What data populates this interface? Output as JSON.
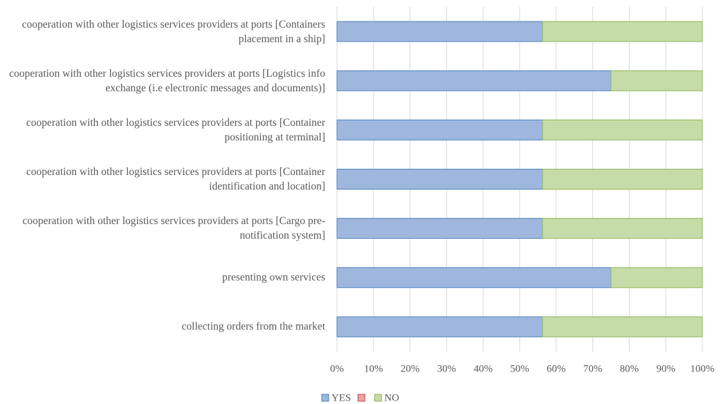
{
  "chart_data": {
    "type": "stacked_bar_horizontal",
    "categories": [
      "cooperation with other logistics services providers at ports [Containers  placement in a ship]",
      "cooperation with other logistics services providers at ports [Logistics info exchange (i.e electronic messages and documents)]",
      "cooperation with other logistics services providers at ports [Container positioning at terminal]",
      "cooperation with other logistics services providers at ports [Container identification and location]",
      "cooperation with other logistics services providers at ports [Cargo pre-notification system]",
      "presenting own services",
      "collecting orders from the market"
    ],
    "series": [
      {
        "name": "YES",
        "color": "#9fb7de",
        "stroke": "#4f81bd",
        "values": [
          56.25,
          75,
          56.25,
          56.25,
          56.25,
          75,
          56.25
        ]
      },
      {
        "color": "#e8a3a3",
        "stroke": "#c0504d",
        "values": [
          0,
          0,
          0,
          0,
          0,
          0,
          0
        ]
      },
      {
        "name": "NO",
        "color": "#c6dca8",
        "stroke": "#8db556",
        "values": [
          43.75,
          25,
          43.75,
          43.75,
          43.75,
          25,
          43.75
        ]
      }
    ],
    "xlim": [
      0,
      100
    ],
    "xticks": [
      {
        "value": 0,
        "label": "0%"
      },
      {
        "value": 10,
        "label": "10%"
      },
      {
        "value": 20,
        "label": "20%"
      },
      {
        "value": 30,
        "label": "30%"
      },
      {
        "value": 40,
        "label": "40%"
      },
      {
        "value": 50,
        "label": "50%"
      },
      {
        "value": 60,
        "label": "60%"
      },
      {
        "value": 70,
        "label": "70%"
      },
      {
        "value": 80,
        "label": "80%"
      },
      {
        "value": 90,
        "label": "90%"
      },
      {
        "value": 100,
        "label": "100%"
      }
    ],
    "grid": true,
    "legend": "bottom"
  }
}
